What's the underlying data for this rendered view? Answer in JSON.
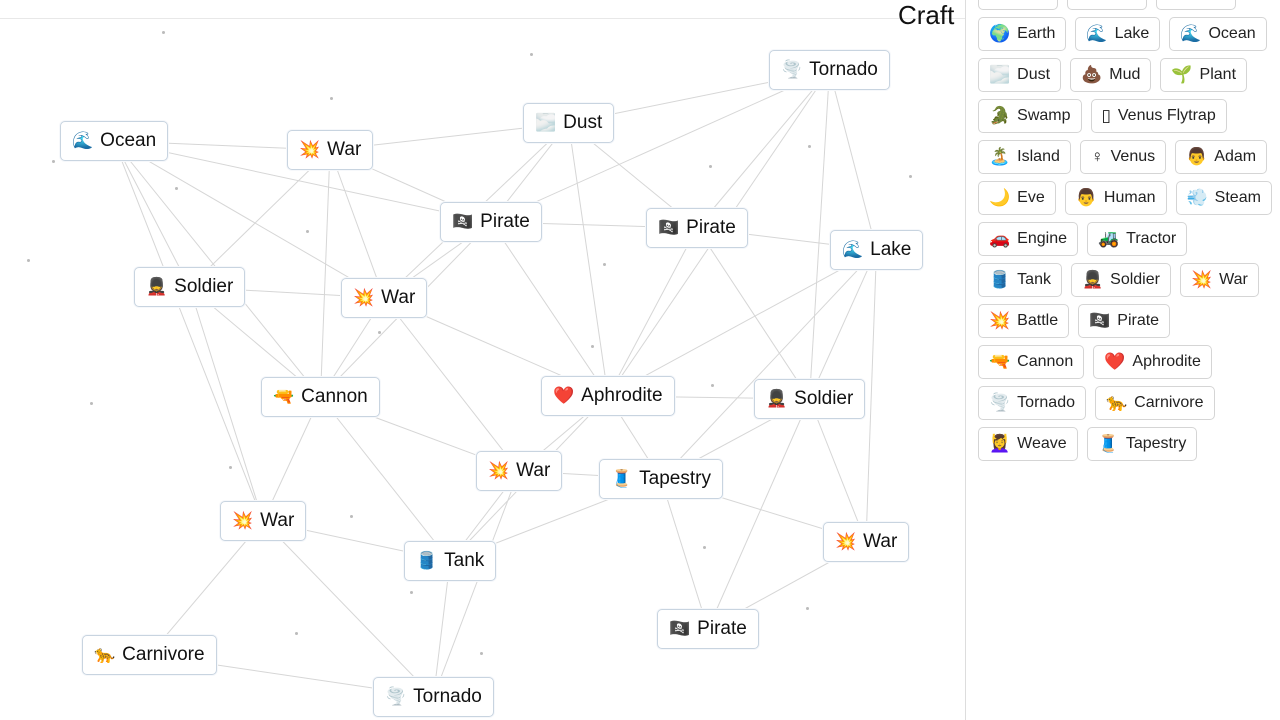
{
  "header": {
    "title_fragment": "Craft"
  },
  "canvas": {
    "nodes": [
      {
        "label": "Tornado",
        "icon": "🌪️"
      },
      {
        "label": "Ocean",
        "icon": "🌊"
      },
      {
        "label": "War",
        "icon": "💥"
      },
      {
        "label": "Dust",
        "icon": "🌫️"
      },
      {
        "label": "Pirate",
        "icon": "🏴‍☠️"
      },
      {
        "label": "Pirate",
        "icon": "🏴‍☠️"
      },
      {
        "label": "Lake",
        "icon": "🌊"
      },
      {
        "label": "Soldier",
        "icon": "💂"
      },
      {
        "label": "War",
        "icon": "💥"
      },
      {
        "label": "Cannon",
        "icon": "🔫"
      },
      {
        "label": "Aphrodite",
        "icon": "❤️"
      },
      {
        "label": "Soldier",
        "icon": "💂"
      },
      {
        "label": "War",
        "icon": "💥"
      },
      {
        "label": "Tapestry",
        "icon": "🧵"
      },
      {
        "label": "War",
        "icon": "💥"
      },
      {
        "label": "War",
        "icon": "💥"
      },
      {
        "label": "Tank",
        "icon": "🛢️"
      },
      {
        "label": "Pirate",
        "icon": "🏴‍☠️"
      },
      {
        "label": "Carnivore",
        "icon": "🐆"
      },
      {
        "label": "Tornado",
        "icon": "🌪️"
      }
    ]
  },
  "sidebar": {
    "items": [
      {
        "label": "Earth",
        "icon": "🌍"
      },
      {
        "label": "Lake",
        "icon": "🌊"
      },
      {
        "label": "Ocean",
        "icon": "🌊"
      },
      {
        "label": "Dust",
        "icon": "🌫️"
      },
      {
        "label": "Mud",
        "icon": "💩"
      },
      {
        "label": "Plant",
        "icon": "🌱"
      },
      {
        "label": "Swamp",
        "icon": "🐊"
      },
      {
        "label": "Venus Flytrap",
        "icon": "▯"
      },
      {
        "label": "Island",
        "icon": "🏝️"
      },
      {
        "label": "Venus",
        "icon": "♀"
      },
      {
        "label": "Adam",
        "icon": "👨"
      },
      {
        "label": "Eve",
        "icon": "🌙"
      },
      {
        "label": "Human",
        "icon": "👨"
      },
      {
        "label": "Steam",
        "icon": "💨"
      },
      {
        "label": "Engine",
        "icon": "🚗"
      },
      {
        "label": "Tractor",
        "icon": "🚜"
      },
      {
        "label": "Tank",
        "icon": "🛢️"
      },
      {
        "label": "Soldier",
        "icon": "💂"
      },
      {
        "label": "War",
        "icon": "💥"
      },
      {
        "label": "Battle",
        "icon": "💥"
      },
      {
        "label": "Pirate",
        "icon": "🏴‍☠️"
      },
      {
        "label": "Cannon",
        "icon": "🔫"
      },
      {
        "label": "Aphrodite",
        "icon": "❤️"
      },
      {
        "label": "Tornado",
        "icon": "🌪️"
      },
      {
        "label": "Carnivore",
        "icon": "🐆"
      },
      {
        "label": "Weave",
        "icon": "💆‍♀️"
      },
      {
        "label": "Tapestry",
        "icon": "🧵"
      }
    ]
  }
}
